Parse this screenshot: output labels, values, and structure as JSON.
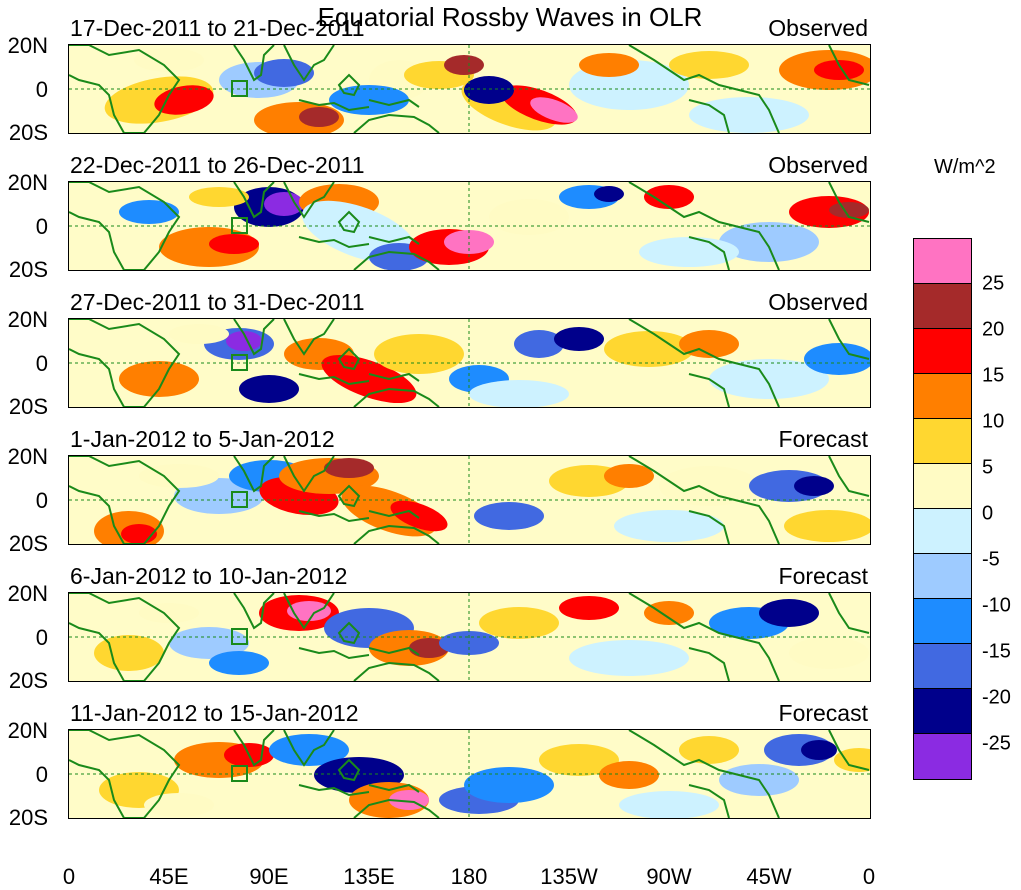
{
  "title": "Equatorial Rossby Waves in OLR",
  "colorbar": {
    "title": "W/m^2",
    "levels": [
      "25",
      "20",
      "15",
      "10",
      "5",
      "0",
      "-5",
      "-10",
      "-15",
      "-20",
      "-25"
    ],
    "colors": [
      "#ff73c2",
      "#a52a2a",
      "#ff0000",
      "#ff7f00",
      "#ffd730",
      "#fffbc4",
      "#cdf2ff",
      "#9ecbff",
      "#1e8cff",
      "#4169e1",
      "#00008b",
      "#8b2be2"
    ]
  },
  "x_ticks": [
    "0",
    "45E",
    "90E",
    "135E",
    "180",
    "135W",
    "90W",
    "45W",
    "0"
  ],
  "y_ticks": [
    "20N",
    "0",
    "20S"
  ],
  "panels": [
    {
      "date": "17-Dec-2011 to 21-Dec-2011",
      "kind": "Observed"
    },
    {
      "date": "22-Dec-2011 to 26-Dec-2011",
      "kind": "Observed"
    },
    {
      "date": "27-Dec-2011 to 31-Dec-2011",
      "kind": "Observed"
    },
    {
      "date": "1-Jan-2012 to 5-Jan-2012",
      "kind": "Forecast"
    },
    {
      "date": "6-Jan-2012 to 10-Jan-2012",
      "kind": "Forecast"
    },
    {
      "date": "11-Jan-2012 to 15-Jan-2012",
      "kind": "Forecast"
    }
  ],
  "colors": {
    "coastline": "#1a8a1a",
    "guides": "#1a8a1a"
  }
}
